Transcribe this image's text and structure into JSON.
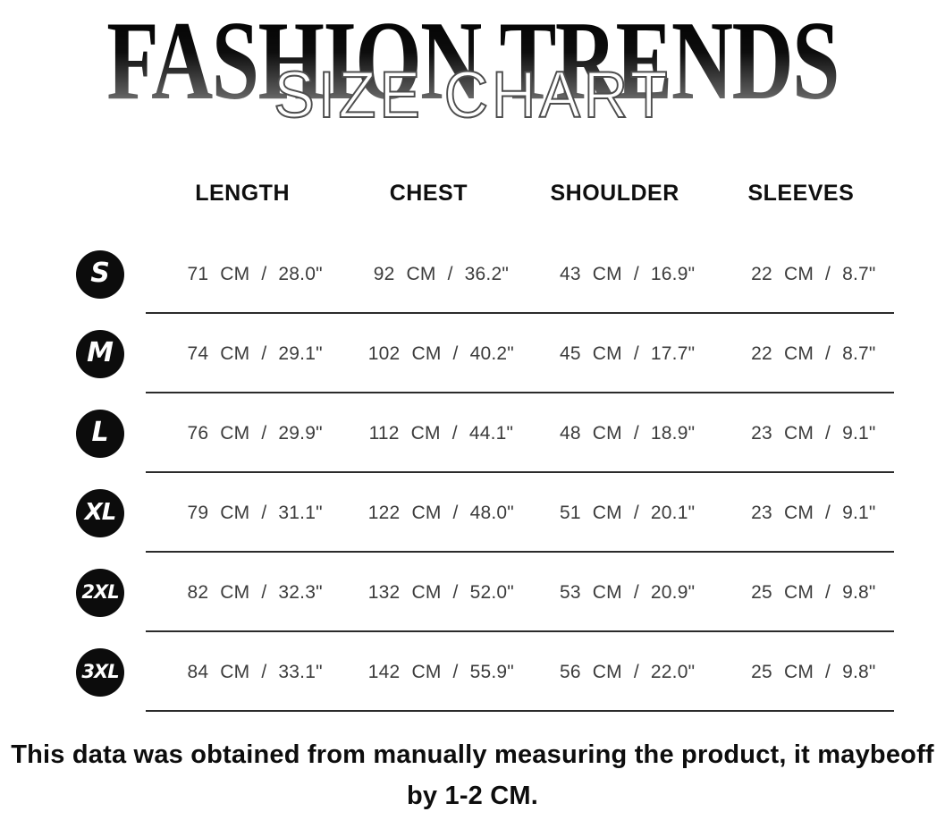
{
  "header": {
    "brand_title": "FASHION TRENDS",
    "subtitle": "SIZE CHART"
  },
  "table": {
    "columns": [
      "LENGTH",
      "CHEST",
      "SHOULDER",
      "SLEEVES"
    ],
    "rows": [
      {
        "size": "S",
        "length": "71 CM / 28.0\"",
        "chest": "92 CM / 36.2\"",
        "shoulder": "43 CM / 16.9\"",
        "sleeves": "22 CM / 8.7\""
      },
      {
        "size": "M",
        "length": "74 CM / 29.1\"",
        "chest": "102 CM / 40.2\"",
        "shoulder": "45 CM / 17.7\"",
        "sleeves": "22 CM / 8.7\""
      },
      {
        "size": "L",
        "length": "76 CM / 29.9\"",
        "chest": "112 CM / 44.1\"",
        "shoulder": "48 CM / 18.9\"",
        "sleeves": "23 CM / 9.1\""
      },
      {
        "size": "XL",
        "length": "79 CM / 31.1\"",
        "chest": "122 CM / 48.0\"",
        "shoulder": "51 CM / 20.1\"",
        "sleeves": "23 CM / 9.1\""
      },
      {
        "size": "2XL",
        "length": "82 CM / 32.3\"",
        "chest": "132 CM / 52.0\"",
        "shoulder": "53 CM / 20.9\"",
        "sleeves": "25 CM / 9.8\""
      },
      {
        "size": "3XL",
        "length": "84 CM / 33.1\"",
        "chest": "142 CM / 55.9\"",
        "shoulder": "56 CM / 22.0\"",
        "sleeves": "25 CM / 9.8\""
      }
    ]
  },
  "footer": {
    "line1": "This data was obtained from manually measuring the product, it maybeoff",
    "line2": "by 1-2 CM."
  },
  "colors": {
    "badge_bg": "#0c0c0c",
    "text_primary": "#0f0f0f",
    "text_data": "#3c3c3c",
    "divider": "#2b2b2b"
  },
  "chart_data": {
    "type": "table",
    "title": "FASHION TRENDS — SIZE CHART",
    "columns": [
      "SIZE",
      "LENGTH",
      "CHEST",
      "SHOULDER",
      "SLEEVES"
    ],
    "rows": [
      [
        "S",
        "71 CM / 28.0\"",
        "92 CM / 36.2\"",
        "43 CM / 16.9\"",
        "22 CM / 8.7\""
      ],
      [
        "M",
        "74 CM / 29.1\"",
        "102 CM / 40.2\"",
        "45 CM / 17.7\"",
        "22 CM / 8.7\""
      ],
      [
        "L",
        "76 CM / 29.9\"",
        "112 CM / 44.1\"",
        "48 CM / 18.9\"",
        "23 CM / 9.1\""
      ],
      [
        "XL",
        "79 CM / 31.1\"",
        "122 CM / 48.0\"",
        "51 CM / 20.1\"",
        "23 CM / 9.1\""
      ],
      [
        "2XL",
        "82 CM / 32.3\"",
        "132 CM / 52.0\"",
        "53 CM / 20.9\"",
        "25 CM / 9.8\""
      ],
      [
        "3XL",
        "84 CM / 33.1\"",
        "142 CM / 55.9\"",
        "56 CM / 22.0\"",
        "25 CM / 9.8\""
      ]
    ],
    "note": "This data was obtained from manually measuring the product, it maybeoff by 1-2 CM."
  }
}
